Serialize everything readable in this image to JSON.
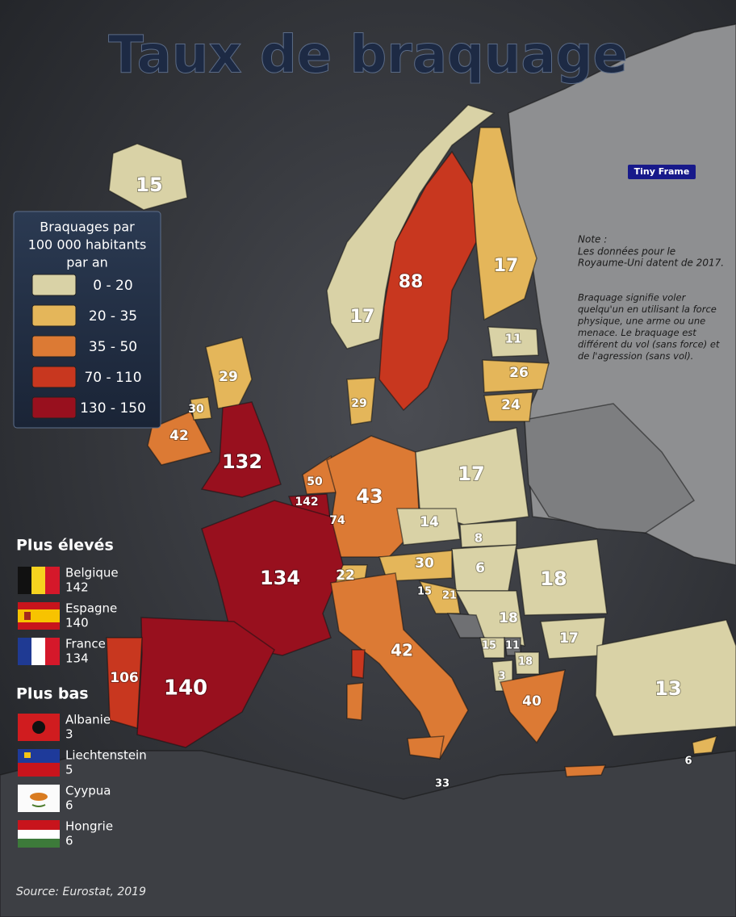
{
  "title": "Taux de braquage",
  "watermark": "Tiny Frame",
  "legend": {
    "title_lines": [
      "Braquages par",
      "100 000 habitants",
      "par an"
    ],
    "items": [
      {
        "label": "0 - 20",
        "color": "#d9d2a6"
      },
      {
        "label": "20 - 35",
        "color": "#e4b65a"
      },
      {
        "label": "35 - 50",
        "color": "#dc7a34"
      },
      {
        "label": "70 - 110",
        "color": "#c8371f"
      },
      {
        "label": "130 - 150",
        "color": "#98101e"
      }
    ]
  },
  "note": {
    "heading": "Note :",
    "lines_uk": [
      "Les données pour le",
      "Royaume-Uni datent de 2017."
    ],
    "lines_def": [
      "Braquage signifie voler",
      "quelqu'un en utilisant la force",
      "physique, une arme ou une",
      "menace. Le braquage est",
      "différent du vol (sans force) et",
      "de l'agression (sans vol)."
    ]
  },
  "map_labels": [
    "15",
    "88",
    "17",
    "17",
    "11",
    "26",
    "24",
    "29",
    "30",
    "42",
    "132",
    "29",
    "17",
    "50",
    "142",
    "74",
    "43",
    "14",
    "8",
    "6",
    "30",
    "22",
    "134",
    "18",
    "15",
    "21",
    "18",
    "17",
    "15",
    "11",
    "18",
    "3",
    "42",
    "106",
    "140",
    "40",
    "13",
    "6",
    "33"
  ],
  "highest": {
    "title": "Plus élevés",
    "items": [
      {
        "name": "Belgique",
        "value": "142"
      },
      {
        "name": "Espagne",
        "value": "140"
      },
      {
        "name": "France",
        "value": "134"
      }
    ]
  },
  "lowest": {
    "title": "Plus bas",
    "items": [
      {
        "name": "Albanie",
        "value": "3"
      },
      {
        "name": "Liechtenstein",
        "value": "5"
      },
      {
        "name": "Cyypua",
        "value": "6"
      },
      {
        "name": "Hongrie",
        "value": "6"
      }
    ]
  },
  "source": "Source: Eurostat, 2019"
}
